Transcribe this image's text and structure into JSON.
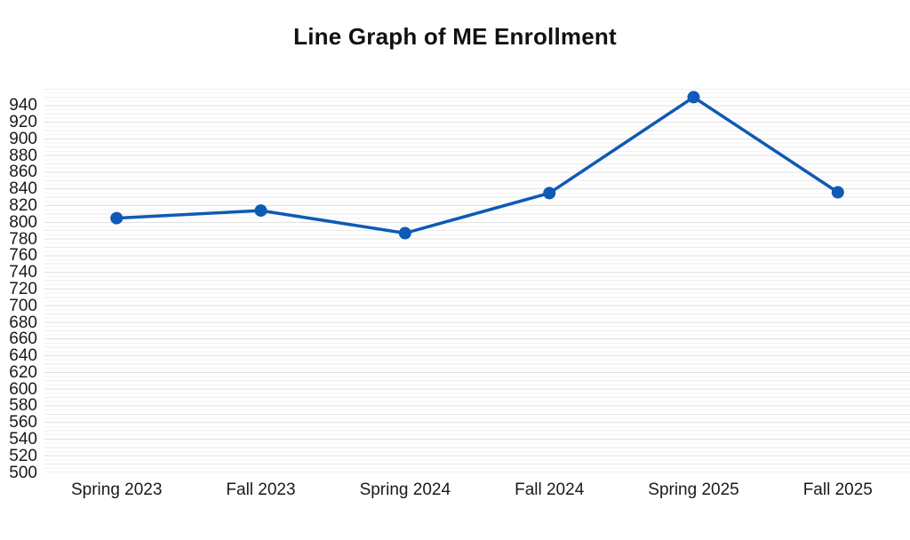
{
  "chart_data": {
    "type": "line",
    "title": "Line Graph of ME Enrollment",
    "xlabel": "",
    "ylabel": "",
    "categories": [
      "Spring 2023",
      "Fall 2023",
      "Spring 2024",
      "Fall 2024",
      "Spring 2025",
      "Fall 2025"
    ],
    "series": [
      {
        "name": "ME Enrollment",
        "values": [
          805,
          814,
          787,
          835,
          950,
          836
        ]
      }
    ],
    "ylim": [
      500,
      960
    ],
    "y_ticks": [
      500,
      520,
      540,
      560,
      580,
      600,
      620,
      640,
      660,
      680,
      700,
      720,
      740,
      760,
      780,
      800,
      820,
      840,
      860,
      880,
      900,
      920,
      940
    ],
    "grid": {
      "on": true,
      "minor_step": 5,
      "mid_step": 10,
      "major_step": 20,
      "minor_color": "#f3f3f3",
      "mid_color": "#eaeaea",
      "major_color": "#e0e0e0"
    },
    "legend_position": "none",
    "line_color": "#0e5ab4",
    "marker_color": "#0e5ab4",
    "marker_radius": 7,
    "line_width": 3.5,
    "title_color": "#111111",
    "tick_label_color": "#1a1a1a",
    "background_color": "#ffffff"
  }
}
